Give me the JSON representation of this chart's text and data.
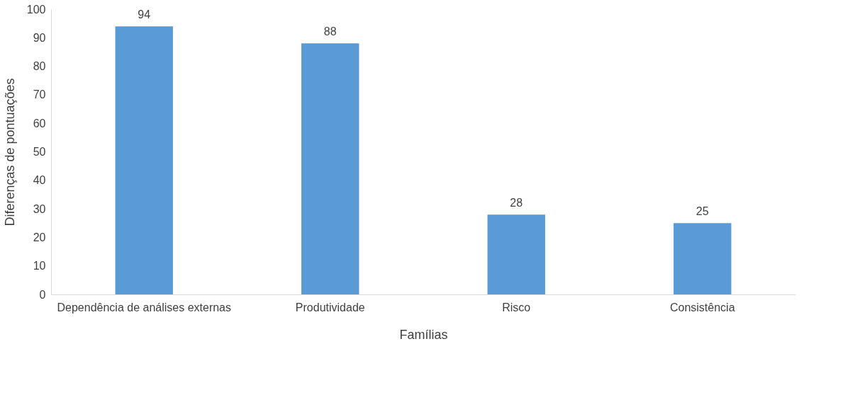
{
  "chart_data": {
    "type": "bar",
    "xlabel": "Famílias",
    "ylabel": "Diferenças de pontuações",
    "categories": [
      "Dependência de análises externas",
      "Produtividade",
      "Risco",
      "Consistência"
    ],
    "values": [
      94,
      88,
      28,
      25
    ],
    "color": "#5b9bd5",
    "ylim": [
      0,
      100
    ],
    "yticks": [
      0,
      10,
      20,
      30,
      40,
      50,
      60,
      70,
      80,
      90,
      100
    ],
    "grid": false,
    "data_labels": true
  }
}
